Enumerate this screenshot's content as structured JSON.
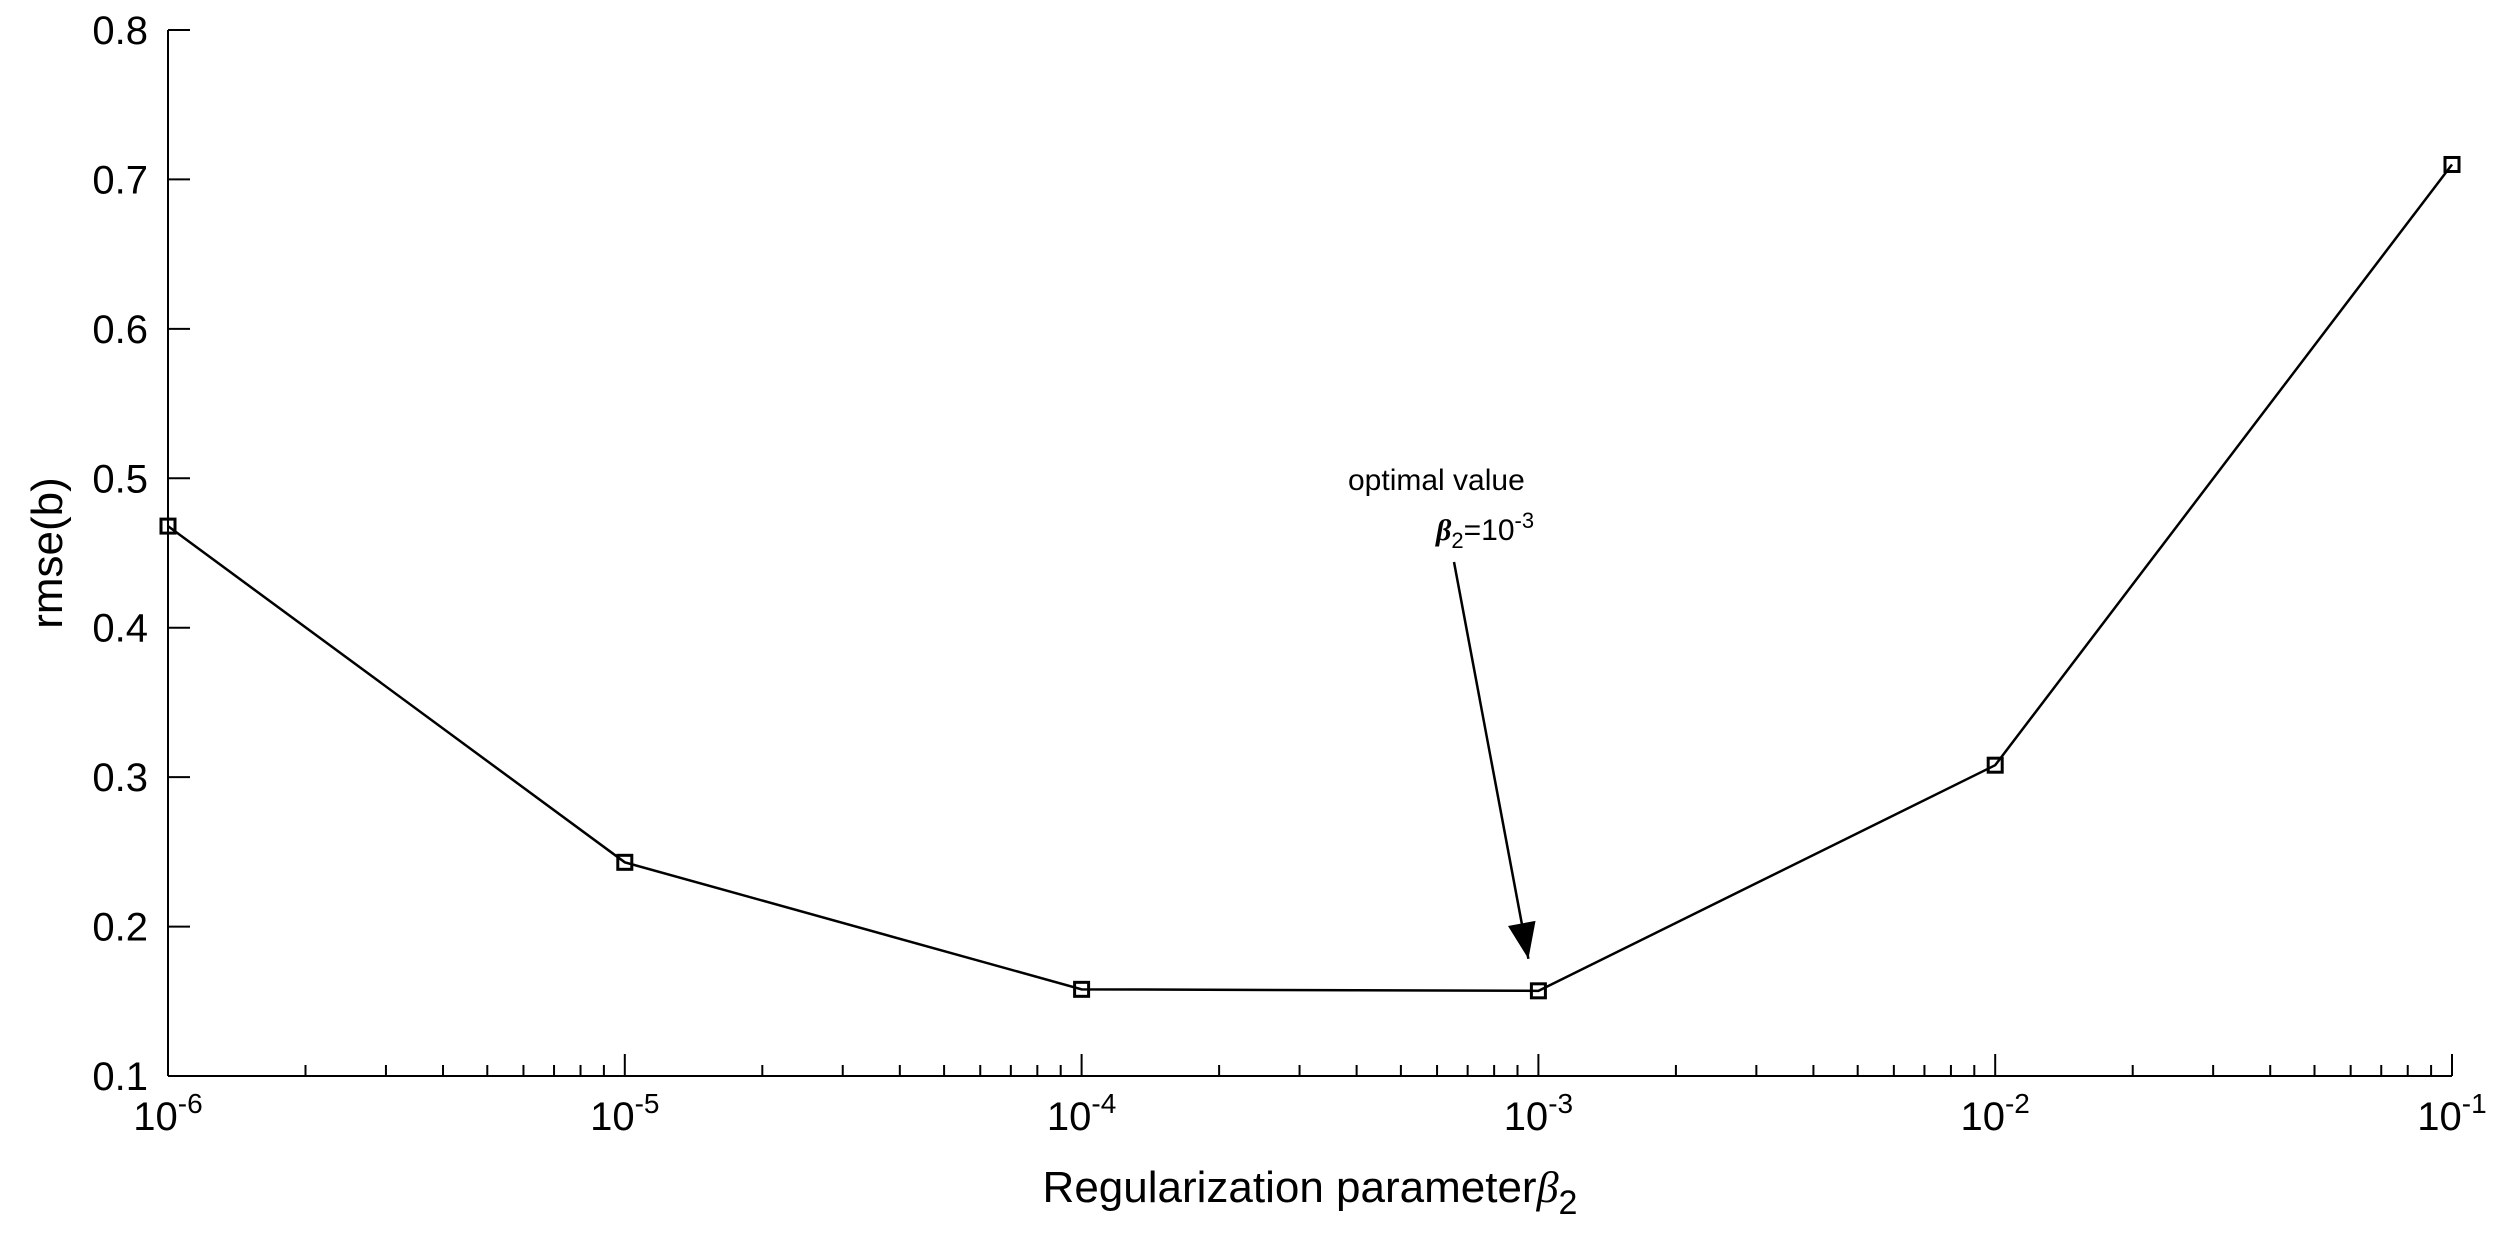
{
  "chart_data": {
    "type": "line",
    "xlabel": "Regularization parameter",
    "xlabel_symbol": "β",
    "xlabel_subscript": "2",
    "ylabel": "rmse(b)",
    "x_scale": "log",
    "xlim": [
      1e-06,
      0.1
    ],
    "ylim": [
      0.1,
      0.8
    ],
    "grid": false,
    "legend": "none",
    "x_ticks": [
      {
        "base": "10",
        "exp": "-6",
        "value": 1e-06
      },
      {
        "base": "10",
        "exp": "-5",
        "value": 1e-05
      },
      {
        "base": "10",
        "exp": "-4",
        "value": 0.0001
      },
      {
        "base": "10",
        "exp": "-3",
        "value": 0.001
      },
      {
        "base": "10",
        "exp": "-2",
        "value": 0.01
      },
      {
        "base": "10",
        "exp": "-1",
        "value": 0.1
      }
    ],
    "y_ticks": [
      "0.1",
      "0.2",
      "0.3",
      "0.4",
      "0.5",
      "0.6",
      "0.7",
      "0.8"
    ],
    "series": [
      {
        "marker": "square",
        "color": "#000000",
        "x": [
          1e-06,
          1e-05,
          0.0001,
          0.001,
          0.01,
          0.1
        ],
        "y": [
          0.468,
          0.243,
          0.158,
          0.157,
          0.308,
          0.71
        ]
      }
    ],
    "annotation": {
      "text": "optimal value",
      "symbol": "β",
      "subscript": "2",
      "eq": "=10",
      "exp": "-3",
      "target_x": 0.001,
      "target_y": 0.157
    }
  }
}
